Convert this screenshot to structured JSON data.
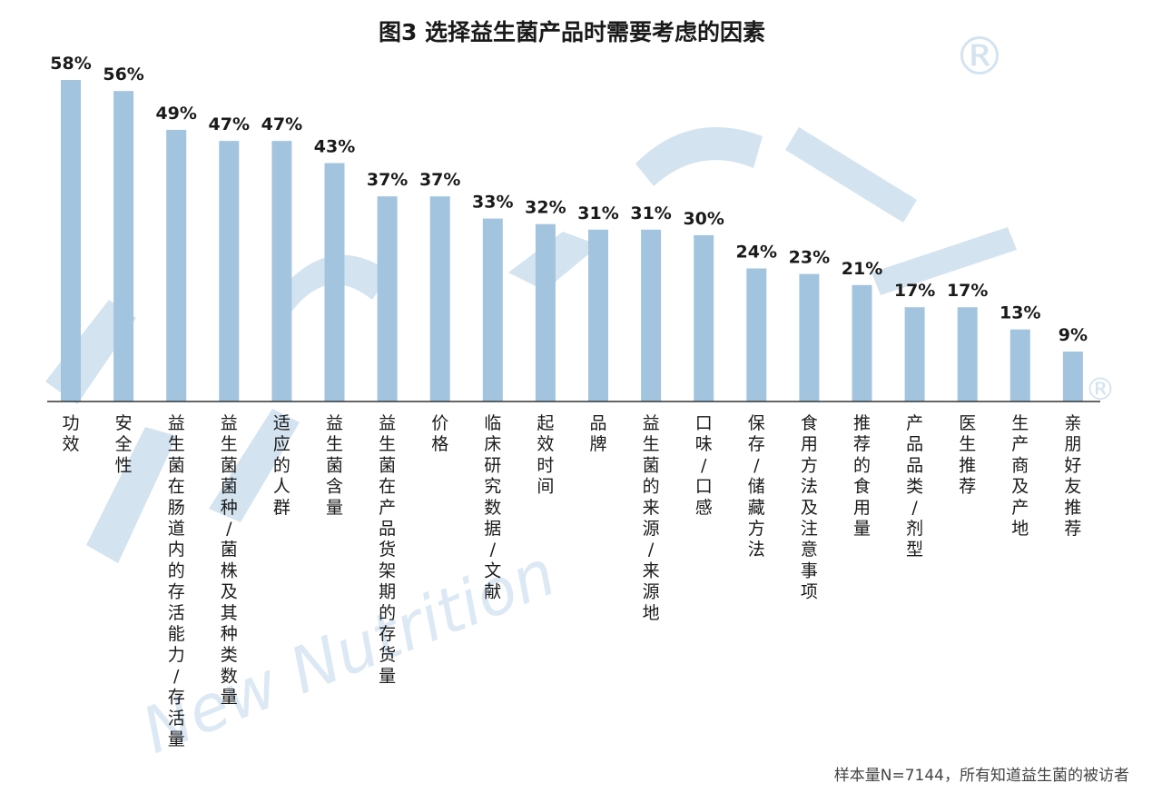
{
  "chart_data": {
    "type": "bar",
    "title": "图3 选择益生菌产品时需要考虑的因素",
    "categories": [
      "功效",
      "安全性",
      "益生菌在肠道内的存活能力/存活量",
      "益生菌菌种/菌株及其种类数量",
      "适应的人群",
      "益生菌含量",
      "益生菌在产品货架期的存货量",
      "价格",
      "临床研究数据/文献",
      "起效时间",
      "品牌",
      "益生菌的来源/来源地",
      "口味/口感",
      "保存/储藏方法",
      "食用方法及注意事项",
      "推荐的食用量",
      "产品品类/剂型",
      "医生推荐",
      "生产商及产地",
      "亲朋好友推荐"
    ],
    "values": [
      58,
      56,
      49,
      47,
      47,
      43,
      37,
      37,
      33,
      32,
      31,
      31,
      30,
      24,
      23,
      21,
      17,
      17,
      13,
      9
    ],
    "value_suffix": "%",
    "ylim": [
      0,
      58
    ],
    "grid": false,
    "legend": "none",
    "bar_color": "#a3c4de",
    "axis_color": "#333333",
    "note": "样本量N=7144，所有知道益生菌的被访者"
  },
  "watermark": {
    "text": "New Nutrition",
    "mark": "®",
    "color": "#d3e3f0"
  }
}
